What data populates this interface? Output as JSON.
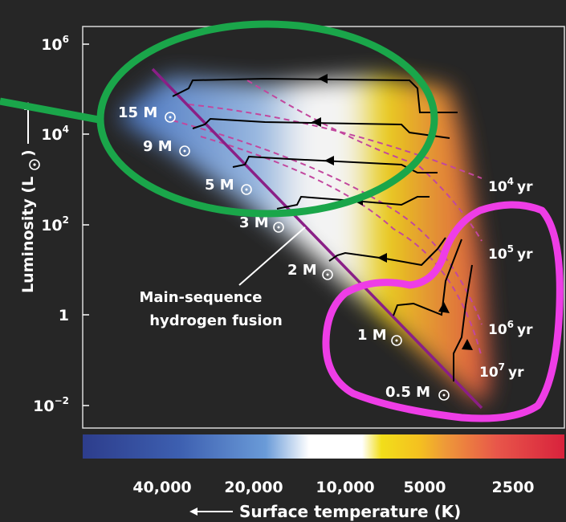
{
  "chart_data": {
    "type": "scatter",
    "title": "",
    "xlabel": "Surface temperature (K)",
    "ylabel": "Luminosity (L",
    "x_axis_reversed": true,
    "x_scale": "log",
    "y_scale": "log",
    "x_ticks": [
      {
        "value": 40000,
        "label": "40,000"
      },
      {
        "value": 20000,
        "label": "20,000"
      },
      {
        "value": 10000,
        "label": "10,000"
      },
      {
        "value": 5000,
        "label": "5000"
      },
      {
        "value": 2500,
        "label": "2500"
      }
    ],
    "y_ticks": [
      {
        "value": 1000000,
        "base": "10",
        "exp": "6"
      },
      {
        "value": 10000,
        "base": "10",
        "exp": "4"
      },
      {
        "value": 100,
        "base": "10",
        "exp": "2"
      },
      {
        "value": 1,
        "base": "1",
        "exp": ""
      },
      {
        "value": 0.01,
        "base": "10",
        "exp": "−2"
      }
    ],
    "main_sequence_label": [
      "Main-sequence",
      "hydrogen fusion"
    ],
    "mass_labels": [
      {
        "label": "15 M",
        "mass": 15
      },
      {
        "label": "9 M",
        "mass": 9
      },
      {
        "label": "5 M",
        "mass": 5
      },
      {
        "label": "3 M",
        "mass": 3
      },
      {
        "label": "2 M",
        "mass": 2
      },
      {
        "label": "1 M",
        "mass": 1
      },
      {
        "label": "0.5 M",
        "mass": 0.5
      }
    ],
    "isochrones": [
      {
        "base": "10",
        "exp": "4",
        "unit": "yr"
      },
      {
        "base": "10",
        "exp": "5",
        "unit": "yr"
      },
      {
        "base": "10",
        "exp": "6",
        "unit": "yr"
      },
      {
        "base": "10",
        "exp": "7",
        "unit": "yr"
      }
    ],
    "colors": {
      "plot_background": "#262626",
      "main_sequence": "#8a1f86",
      "isochrone": "#c2479e",
      "track": "#000000",
      "annotation_green": "#1aa64a",
      "annotation_magenta": "#ee3de6"
    }
  }
}
